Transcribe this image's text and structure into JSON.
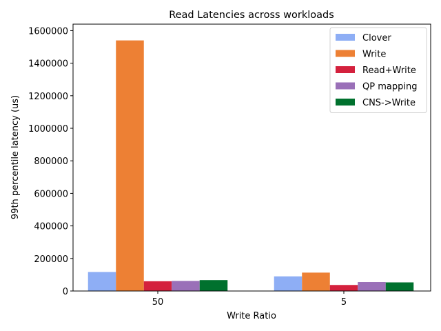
{
  "chart_data": {
    "type": "bar",
    "title": "Read Latencies across workloads",
    "xlabel": "Write Ratio",
    "ylabel": "99th percentile latency (us)",
    "categories": [
      "50",
      "5"
    ],
    "ylim": [
      0,
      1640000
    ],
    "yticks": [
      0,
      200000,
      400000,
      600000,
      800000,
      1000000,
      1200000,
      1400000,
      1600000
    ],
    "legend_position": "top-right",
    "grid": false,
    "series": [
      {
        "name": "Clover",
        "color": "#8eaef5",
        "values": [
          117000,
          90000
        ]
      },
      {
        "name": "Write",
        "color": "#ed8034",
        "values": [
          1540000,
          113000
        ]
      },
      {
        "name": "Read+Write",
        "color": "#d4213d",
        "values": [
          60000,
          37000
        ]
      },
      {
        "name": "QP mapping",
        "color": "#9a70b8",
        "values": [
          62000,
          55000
        ]
      },
      {
        "name": "CNS->Write",
        "color": "#00712e",
        "values": [
          67000,
          53000
        ]
      }
    ]
  }
}
